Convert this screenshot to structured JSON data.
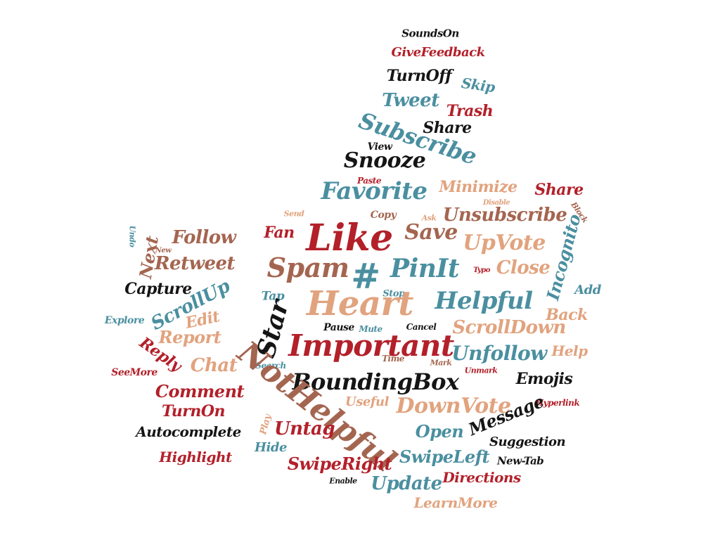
{
  "palette": {
    "red": "#b3202a",
    "teal": "#4a8fa0",
    "peach": "#e1a37e",
    "brown": "#a46550",
    "black": "#151515"
  },
  "words": [
    "SoundsOn",
    "GiveFeedback",
    "TurnOff",
    "Skip",
    "Tweet",
    "Trash",
    "Subscribe",
    "Share",
    "View",
    "Snooze",
    "Paste",
    "Favorite",
    "Minimize",
    "Share",
    "Send",
    "Disable",
    "Copy",
    "Ask",
    "Block",
    "Unsubscribe",
    "Save",
    "Fan",
    "Like",
    "UpVote",
    "Incognito",
    "Follow",
    "Undo",
    "New",
    "Next",
    "Retweet",
    "Spam",
    "#",
    "PinIt",
    "Typo",
    "Close",
    "Capture",
    "ScrollUp",
    "Stop",
    "Tap",
    "Heart",
    "Helpful",
    "Add",
    "Explore",
    "Edit",
    "Star",
    "Back",
    "Report",
    "Pause",
    "Mute",
    "Cancel",
    "ScrollDown",
    "Important",
    "Reply",
    "Unfollow",
    "Help",
    "Chat",
    "SeeMore",
    "Search",
    "Time",
    "Mark",
    "Unmark",
    "BoundingBox",
    "Emojis",
    "Comment",
    "NotHelpful",
    "Hyperlink",
    "TurnOn",
    "Useful",
    "DownVote",
    "Message",
    "Play",
    "Autocomplete",
    "Untag",
    "Open",
    "Hide",
    "Suggestion",
    "Highlight",
    "SwipeRight",
    "SwipeLeft",
    "New-Tab",
    "Enable",
    "Update",
    "Directions",
    "LearnMore"
  ]
}
